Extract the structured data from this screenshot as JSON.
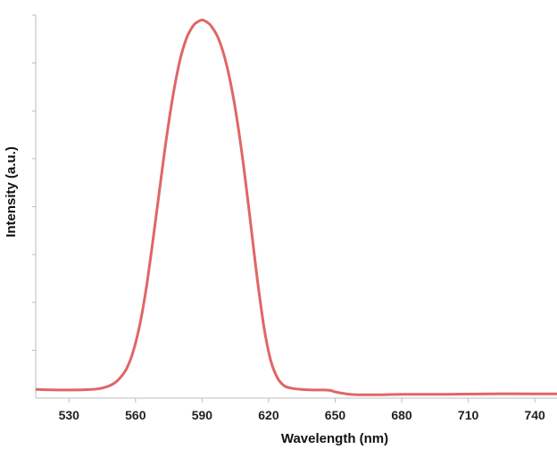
{
  "chart_data": {
    "type": "line",
    "xlabel": "Wavelength (nm)",
    "ylabel": "Intensity (a.u.)",
    "xlim": [
      515,
      750
    ],
    "ylim": [
      0,
      8
    ],
    "x_ticks": [
      530,
      560,
      590,
      620,
      650,
      680,
      710,
      740
    ],
    "y_tick_count": 8,
    "grid": false,
    "series": [
      {
        "color": "#e06666",
        "x": [
          515,
          530,
          540,
          545,
          550,
          553,
          556,
          559,
          562,
          565,
          568,
          571,
          574,
          577,
          580,
          583,
          586,
          588,
          590,
          592,
          594,
          597,
          600,
          603,
          606,
          609,
          612,
          615,
          618,
          621,
          624,
          627,
          630,
          635,
          640,
          645,
          648,
          650,
          655,
          660,
          670,
          680,
          700,
          720,
          740,
          750
        ],
        "y": [
          0.18,
          0.17,
          0.18,
          0.21,
          0.3,
          0.42,
          0.62,
          0.98,
          1.55,
          2.35,
          3.35,
          4.42,
          5.45,
          6.35,
          7.05,
          7.52,
          7.78,
          7.86,
          7.9,
          7.86,
          7.78,
          7.55,
          7.15,
          6.55,
          5.75,
          4.75,
          3.6,
          2.45,
          1.45,
          0.78,
          0.42,
          0.26,
          0.21,
          0.18,
          0.17,
          0.17,
          0.16,
          0.13,
          0.09,
          0.07,
          0.07,
          0.08,
          0.08,
          0.09,
          0.09,
          0.09
        ]
      }
    ]
  }
}
